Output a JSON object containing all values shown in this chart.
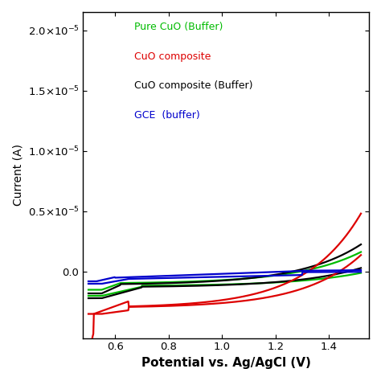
{
  "xlabel": "Potential vs. Ag/AgCl (V)",
  "ylabel": "Current (A)",
  "xlim": [
    0.48,
    1.55
  ],
  "ylim": [
    -5.5e-06,
    2.15e-05
  ],
  "yticks": [
    0.0,
    5e-06,
    1e-05,
    1.5e-05,
    2e-05
  ],
  "xticks": [
    0.6,
    0.8,
    1.0,
    1.2,
    1.4
  ],
  "legend": [
    {
      "label": "Pure CuO (Buffer)",
      "color": "#00bb00"
    },
    {
      "label": "CuO composite",
      "color": "#dd0000"
    },
    {
      "label": "CuO composite (Buffer)",
      "color": "#000000"
    },
    {
      "label": "GCE  (buffer)",
      "color": "#0000cc"
    }
  ],
  "background_color": "#ffffff",
  "line_width": 1.6
}
